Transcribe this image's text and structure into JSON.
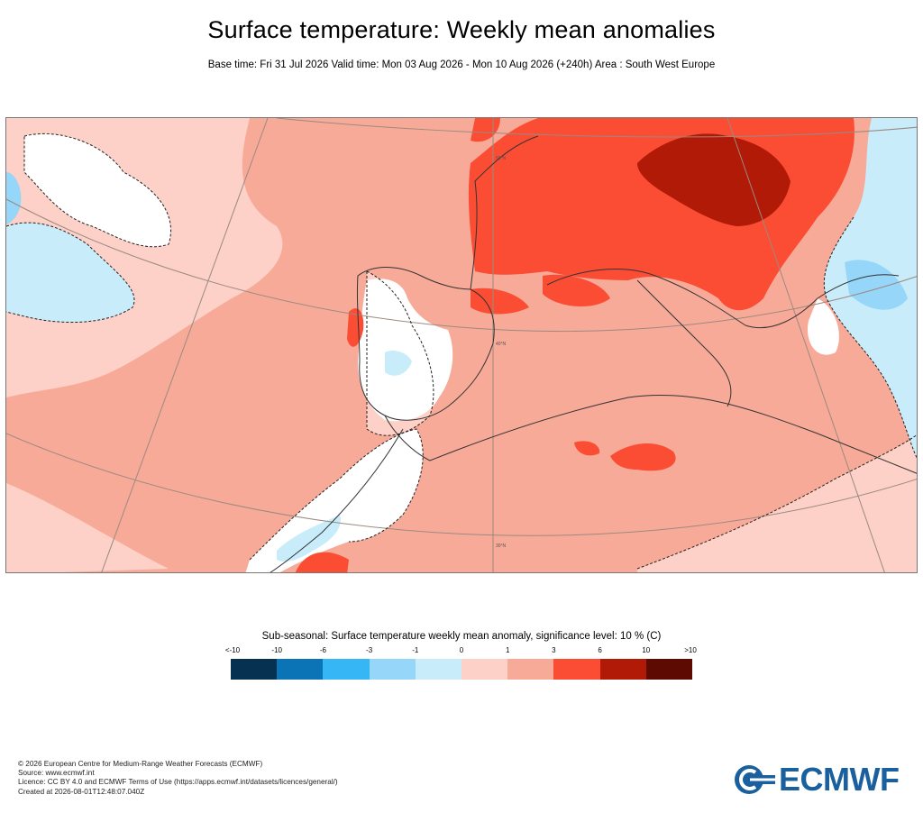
{
  "header": {
    "title": "Surface temperature: Weekly mean anomalies",
    "subtitle": "Base time: Fri 31 Jul 2026 Valid time: Mon 03 Aug 2026 - Mon 10 Aug 2026 (+240h) Area : South West Europe"
  },
  "map": {
    "lat_labels": [
      "50°N",
      "40°N",
      "30°N"
    ],
    "colors": {
      "land_border": "#333333",
      "graticule": "#9a8a80",
      "significance_line": "#222222"
    }
  },
  "legend": {
    "title": "Sub-seasonal: Surface temperature weekly mean anomaly, significance level: 10 % (C)",
    "ticks": [
      "<-10",
      "-10",
      "-6",
      "-3",
      "-1",
      "0",
      "1",
      "3",
      "6",
      "10",
      ">10"
    ],
    "colors": [
      "#063150",
      "#0a74b6",
      "#36b6f4",
      "#96d6f8",
      "#c9ecfb",
      "#fdd1c7",
      "#f8aa98",
      "#fa4d34",
      "#b01a06",
      "#5c0a02"
    ]
  },
  "footer": {
    "lines": [
      "© 2026 European Centre for Medium-Range Weather Forecasts (ECMWF)",
      "Source: www.ecmwf.int",
      "Licence: CC BY 4.0 and ECMWF Terms of Use (https://apps.ecmwf.int/datasets/licences/general/)",
      "Created at 2026-08-01T12:48:07.040Z"
    ]
  },
  "logo": {
    "text": "ECMWF",
    "color": "#1a5f9e",
    "icon": "ecmwf-logo-icon"
  }
}
